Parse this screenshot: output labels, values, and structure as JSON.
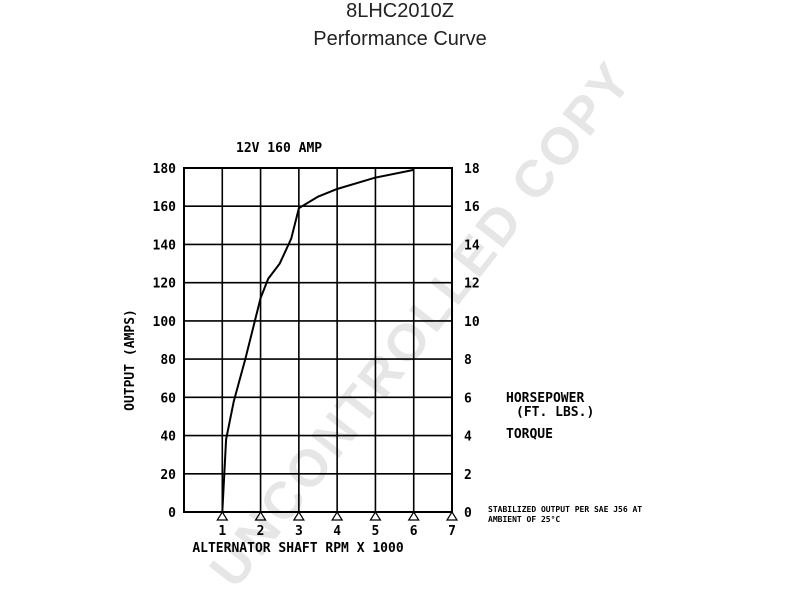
{
  "header": {
    "model": "8LHC2010Z",
    "subtitle": "Performance Curve"
  },
  "chart_data": {
    "type": "line",
    "title": "12V 160 AMP",
    "xlabel": "ALTERNATOR SHAFT RPM X 1000",
    "ylabel": "OUTPUT (AMPS)",
    "xlim": [
      0,
      7
    ],
    "ylim": [
      0,
      180
    ],
    "y2lim": [
      0,
      18
    ],
    "x_ticks": [
      "1",
      "2",
      "3",
      "4",
      "5",
      "6",
      "7"
    ],
    "y_ticks": [
      "0",
      "20",
      "40",
      "60",
      "80",
      "100",
      "120",
      "140",
      "160",
      "180"
    ],
    "y2_ticks": [
      "0",
      "2",
      "4",
      "6",
      "8",
      "10",
      "12",
      "14",
      "16",
      "18"
    ],
    "grid": true,
    "series": [
      {
        "x": [
          1.0,
          1.1,
          1.3,
          1.6,
          2.0,
          2.2,
          2.5,
          2.8,
          3.0,
          3.5,
          4.0,
          5.0,
          6.0
        ],
        "y": [
          0,
          38,
          58,
          80,
          112,
          122,
          130,
          143,
          159,
          165,
          169,
          175,
          179
        ]
      }
    ],
    "legend_labels": [
      "HORSEPOWER",
      "(FT. LBS.)",
      "TORQUE"
    ],
    "note": [
      "STABILIZED OUTPUT PER SAE J56 AT",
      "AMBIENT OF 25°C"
    ],
    "watermark": "UNCONTROLLED COPY",
    "colors": {
      "grid": "#000000",
      "curve": "#000000",
      "watermark": "#e6e6e6"
    }
  }
}
